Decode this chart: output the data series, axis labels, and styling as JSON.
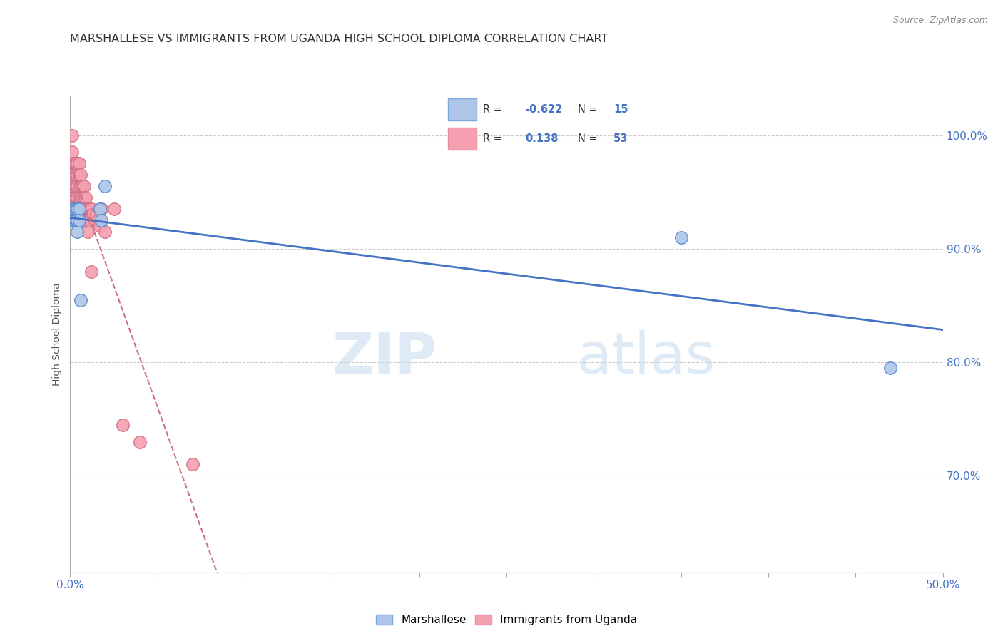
{
  "title": "MARSHALLESE VS IMMIGRANTS FROM UGANDA HIGH SCHOOL DIPLOMA CORRELATION CHART",
  "source": "Source: ZipAtlas.com",
  "ylabel": "High School Diploma",
  "ytick_labels": [
    "100.0%",
    "90.0%",
    "80.0%",
    "70.0%"
  ],
  "ytick_values": [
    1.0,
    0.9,
    0.8,
    0.7
  ],
  "xlim": [
    0.0,
    0.5
  ],
  "ylim": [
    0.615,
    1.035
  ],
  "legend_label_1": "Marshallese",
  "legend_label_2": "Immigrants from Uganda",
  "R1": -0.622,
  "N1": 15,
  "R2": 0.138,
  "N2": 53,
  "color_marshallese": "#aec6e8",
  "color_uganda": "#f4a0b0",
  "color_marshallese_line": "#4472c4",
  "color_uganda_line": "#d07088",
  "watermark_zip": "ZIP",
  "watermark_atlas": "atlas",
  "marshallese_x": [
    0.002,
    0.002,
    0.003,
    0.003,
    0.004,
    0.004,
    0.004,
    0.005,
    0.005,
    0.006,
    0.017,
    0.018,
    0.02,
    0.35,
    0.47
  ],
  "marshallese_y": [
    0.935,
    0.925,
    0.935,
    0.925,
    0.935,
    0.925,
    0.915,
    0.935,
    0.925,
    0.855,
    0.935,
    0.925,
    0.955,
    0.91,
    0.795
  ],
  "uganda_x": [
    0.001,
    0.001,
    0.002,
    0.002,
    0.002,
    0.002,
    0.003,
    0.003,
    0.003,
    0.003,
    0.003,
    0.004,
    0.004,
    0.004,
    0.004,
    0.004,
    0.005,
    0.005,
    0.005,
    0.005,
    0.005,
    0.005,
    0.006,
    0.006,
    0.006,
    0.006,
    0.006,
    0.007,
    0.007,
    0.007,
    0.007,
    0.008,
    0.008,
    0.008,
    0.009,
    0.009,
    0.01,
    0.01,
    0.011,
    0.011,
    0.012,
    0.012,
    0.013,
    0.014,
    0.015,
    0.016,
    0.017,
    0.018,
    0.02,
    0.025,
    0.03,
    0.04,
    0.07
  ],
  "uganda_y": [
    1.0,
    0.985,
    0.975,
    0.965,
    0.955,
    0.945,
    0.975,
    0.965,
    0.955,
    0.945,
    0.935,
    0.975,
    0.965,
    0.955,
    0.945,
    0.935,
    0.975,
    0.965,
    0.955,
    0.945,
    0.935,
    0.925,
    0.965,
    0.955,
    0.945,
    0.935,
    0.925,
    0.955,
    0.945,
    0.935,
    0.925,
    0.955,
    0.945,
    0.935,
    0.945,
    0.935,
    0.935,
    0.915,
    0.935,
    0.925,
    0.935,
    0.88,
    0.93,
    0.925,
    0.93,
    0.925,
    0.92,
    0.935,
    0.915,
    0.935,
    0.745,
    0.73,
    0.71
  ]
}
